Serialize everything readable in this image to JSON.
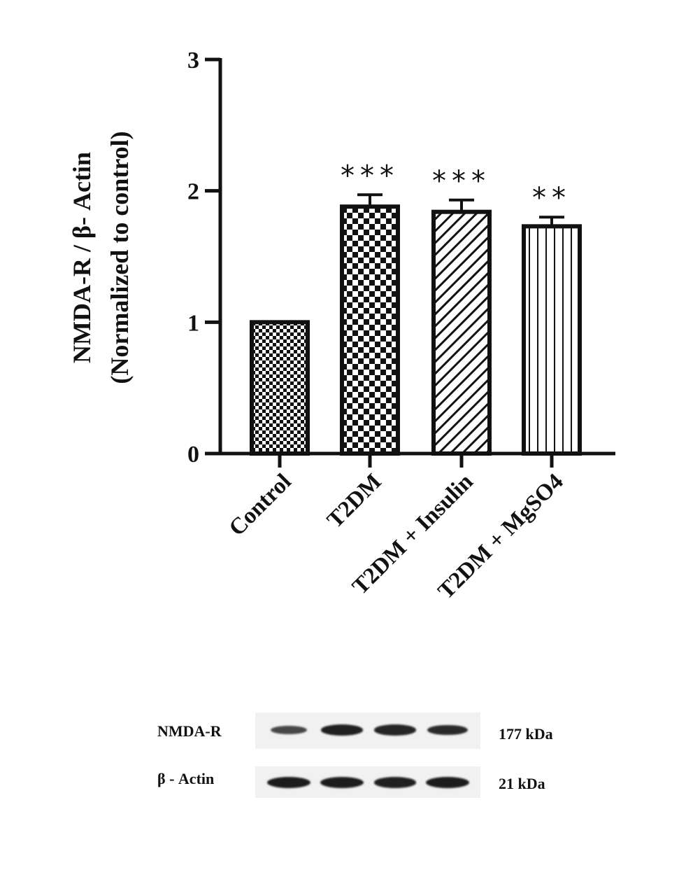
{
  "chart_data": {
    "type": "bar",
    "ylabel": [
      "NMDA-R / β- Actin",
      "(Normalized to control)"
    ],
    "ylim": [
      0,
      3
    ],
    "yticks": [
      "0",
      "1",
      "2",
      "3"
    ],
    "categories": [
      "Control",
      "T2DM",
      "T2DM + Insulin",
      "T2DM + MgSO4"
    ],
    "values": [
      1.0,
      1.88,
      1.84,
      1.73
    ],
    "errors": [
      0.0,
      0.09,
      0.09,
      0.07
    ],
    "patterns": [
      "fine-checker",
      "checker",
      "diagonal-hatch",
      "vertical-lines"
    ],
    "significance": [
      "",
      "***",
      "***",
      "**"
    ],
    "grid": false
  },
  "blot": {
    "rows": [
      {
        "name": "NMDA-R",
        "size": "177 kDa",
        "intensities": [
          0.55,
          0.95,
          0.9,
          0.85
        ]
      },
      {
        "name": "β - Actin",
        "size": "21 kDa",
        "intensities": [
          1.0,
          1.0,
          0.95,
          1.0
        ]
      }
    ]
  }
}
